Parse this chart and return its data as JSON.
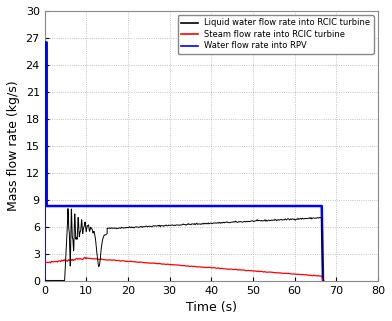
{
  "title": "",
  "xlabel": "Time (s)",
  "ylabel": "Mass flow rate (kg/s)",
  "xlim": [
    0,
    80
  ],
  "ylim": [
    0,
    30
  ],
  "yticks": [
    0,
    3,
    6,
    9,
    12,
    15,
    18,
    21,
    24,
    27,
    30
  ],
  "xticks": [
    0,
    10,
    20,
    30,
    40,
    50,
    60,
    70,
    80
  ],
  "legend_labels": [
    "Liquid water flow rate into RCIC turbine",
    "Steam flow rate into RCIC turbine",
    "Water flow rate into RPV"
  ],
  "figsize": [
    3.92,
    3.21
  ],
  "dpi": 100,
  "background_color": "#ffffff",
  "grid_color": "#b0b0b0",
  "end_time": 66.5
}
